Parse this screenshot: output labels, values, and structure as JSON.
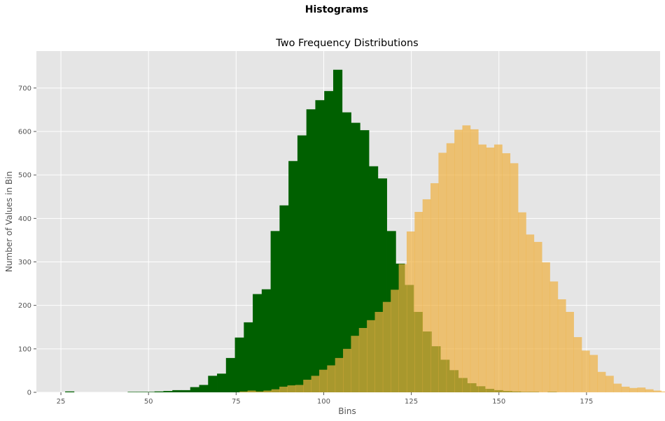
{
  "chart_data": {
    "type": "bar",
    "title": "Histograms",
    "subtitle": "Two Frequency Distributions",
    "xlabel": "Bins",
    "ylabel": "Number of Values in Bin",
    "xlim": [
      18,
      196
    ],
    "ylim": [
      0,
      785
    ],
    "x_ticks": [
      25,
      50,
      75,
      100,
      125,
      150,
      175
    ],
    "y_ticks": [
      0,
      100,
      200,
      300,
      400,
      500,
      600,
      700
    ],
    "grid": true,
    "background_color": "#e5e5e5",
    "series": [
      {
        "color": "#006000",
        "opacity": 1.0,
        "bin_start": 26.2,
        "bin_width": 2.55,
        "values": [
          2,
          0,
          0,
          0,
          0,
          0,
          0,
          1,
          1,
          1,
          2,
          3,
          5,
          5,
          12,
          17,
          38,
          43,
          79,
          126,
          161,
          226,
          237,
          371,
          430,
          532,
          591,
          651,
          672,
          693,
          742,
          644,
          620,
          603,
          520,
          492,
          371,
          296,
          247,
          185,
          140,
          106,
          75,
          51,
          33,
          21,
          14,
          8,
          5,
          3,
          2,
          1,
          1,
          0,
          1
        ]
      },
      {
        "color": "#f0b040",
        "opacity": 0.7,
        "bin_start": 76.0,
        "bin_width": 2.27,
        "values": [
          2,
          4,
          2,
          4,
          7,
          13,
          16,
          17,
          29,
          38,
          52,
          62,
          79,
          100,
          130,
          148,
          166,
          185,
          208,
          236,
          295,
          370,
          415,
          444,
          481,
          551,
          573,
          604,
          614,
          605,
          570,
          563,
          570,
          550,
          527,
          414,
          363,
          346,
          299,
          255,
          214,
          185,
          127,
          96,
          86,
          47,
          38,
          20,
          13,
          10,
          11,
          7,
          4,
          2,
          5,
          2,
          3,
          1,
          1,
          2
        ]
      }
    ]
  }
}
